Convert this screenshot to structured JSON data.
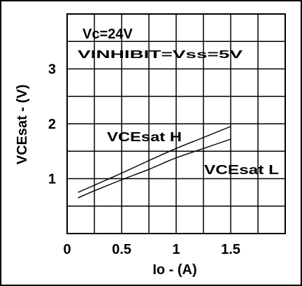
{
  "chart_data": {
    "type": "line",
    "title": "",
    "annotations": [
      "Vc=24V",
      "VINHIBIT=Vss=5V"
    ],
    "xlabel": "Io - (A)",
    "ylabel": "VCEsat - (V)",
    "xlim": [
      0,
      2.0
    ],
    "ylim": [
      0,
      4.0
    ],
    "x_ticks": [
      "0",
      "0.5",
      "1",
      "1.5"
    ],
    "x_tick_values": [
      0,
      0.5,
      1.0,
      1.5
    ],
    "y_ticks": [
      "1",
      "2",
      "3"
    ],
    "y_tick_values": [
      1,
      2,
      3
    ],
    "grid": true,
    "series": [
      {
        "name": "VCEsat H",
        "x": [
          0.1,
          0.25,
          0.5,
          0.75,
          1.0,
          1.25,
          1.5
        ],
        "y": [
          0.75,
          0.88,
          1.1,
          1.33,
          1.55,
          1.75,
          1.95
        ]
      },
      {
        "name": "VCEsat L",
        "x": [
          0.1,
          0.25,
          0.5,
          0.75,
          1.0,
          1.25,
          1.5
        ],
        "y": [
          0.65,
          0.78,
          0.98,
          1.17,
          1.38,
          1.55,
          1.72
        ]
      }
    ]
  }
}
